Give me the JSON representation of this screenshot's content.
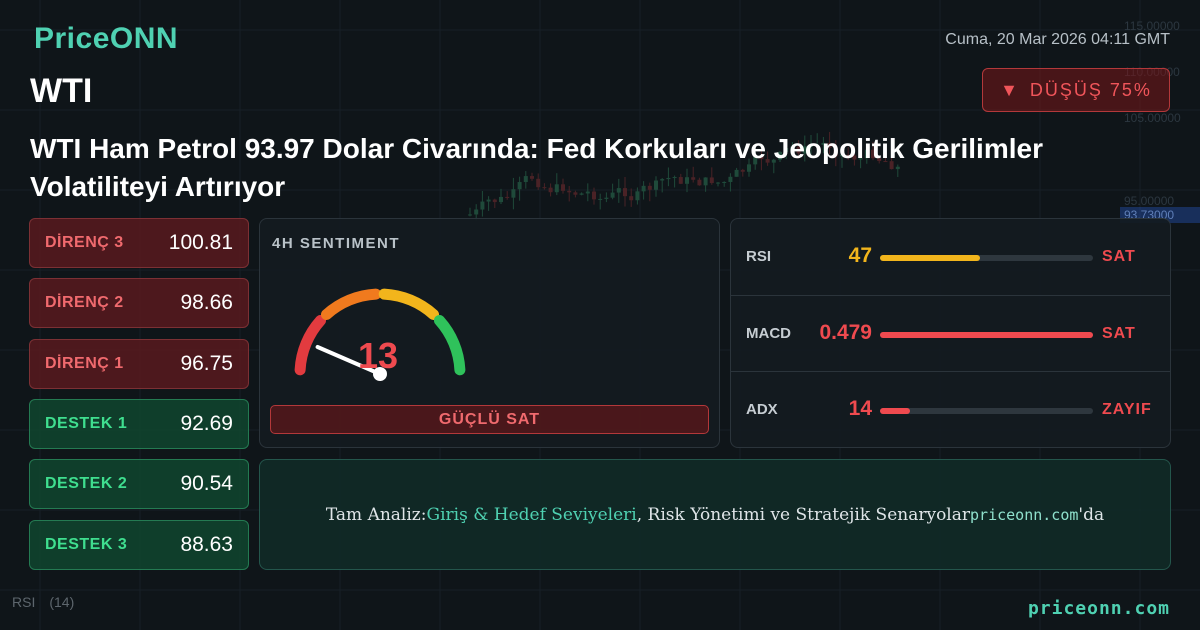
{
  "brand": {
    "name": "PriceONN"
  },
  "datetime": "Cuma, 20 Mar 2026 04:11 GMT",
  "symbol": "WTI",
  "trend_badge": {
    "arrow": "▼",
    "label": "DÜŞÜŞ 75%",
    "color": "#f0555a"
  },
  "headline": "WTI Ham Petrol 93.97 Dolar Civarında: Fed Korkuları ve Jeopolitik Gerilimler Volatiliteyi Artırıyor",
  "levels": [
    {
      "label": "DİRENÇ 3",
      "value": "100.81",
      "kind": "resistance"
    },
    {
      "label": "DİRENÇ 2",
      "value": "98.66",
      "kind": "resistance"
    },
    {
      "label": "DİRENÇ 1",
      "value": "96.75",
      "kind": "resistance"
    },
    {
      "label": "DESTEK 1",
      "value": "92.69",
      "kind": "support"
    },
    {
      "label": "DESTEK 2",
      "value": "90.54",
      "kind": "support"
    },
    {
      "label": "DESTEK 3",
      "value": "88.63",
      "kind": "support"
    }
  ],
  "sentiment": {
    "title": "4H SENTIMENT",
    "value": "13",
    "max": 100,
    "label": "GÜÇLÜ SAT",
    "gauge_colors": [
      "#e23b3f",
      "#f07a1e",
      "#f2b51c",
      "#2fc25b"
    ]
  },
  "indicators": [
    {
      "name": "RSI",
      "value": "47",
      "level": 0.47,
      "signal": "SAT",
      "color": "#f2b51c"
    },
    {
      "name": "MACD",
      "value": "0.479",
      "level": 1.0,
      "signal": "SAT",
      "color": "#ef4a4f"
    },
    {
      "name": "ADX",
      "value": "14",
      "level": 0.14,
      "signal": "ZAYIF",
      "color": "#ef4a4f"
    }
  ],
  "cta": {
    "prefix": "Tam Analiz: ",
    "highlight": "Giriş & Hedef Seviyeleri",
    "middle": ", Risk Yönetimi ve Stratejik Senaryolar ",
    "site": "priceonn.com",
    "suffix": "'da"
  },
  "footer_url": "priceonn.com",
  "background_chart": {
    "price_labels": [
      "115.00000",
      "110.00000",
      "105.00000",
      "95.00000",
      "93.73000"
    ],
    "current_price_color": "#2a62d8",
    "rsi_label": "RSI",
    "rsi_period": "(14)"
  }
}
